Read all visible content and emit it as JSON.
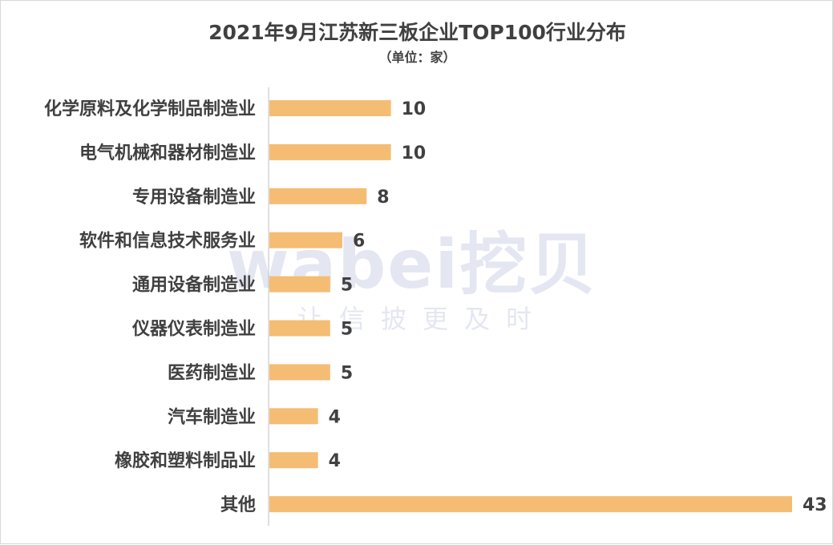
{
  "chart_data": {
    "type": "bar",
    "orientation": "horizontal",
    "title": "2021年9月江苏新三板企业TOP100行业分布",
    "subtitle": "（单位：家）",
    "categories": [
      "化学原料及化学制品制造业",
      "电气机械和器材制造业",
      "专用设备制造业",
      "软件和信息技术服务业",
      "通用设备制造业",
      "仪器仪表制造业",
      "医药制造业",
      "汽车制造业",
      "橡胶和塑料制品业",
      "其他"
    ],
    "values": [
      10,
      10,
      8,
      6,
      5,
      5,
      5,
      4,
      4,
      43
    ],
    "xlim": [
      0,
      43
    ],
    "grid": false,
    "legend": "none",
    "bar_color": "#f4bd73",
    "data_labels": true
  },
  "watermark": {
    "logo": "wabei挖贝",
    "slogan": "让信披更及时"
  }
}
